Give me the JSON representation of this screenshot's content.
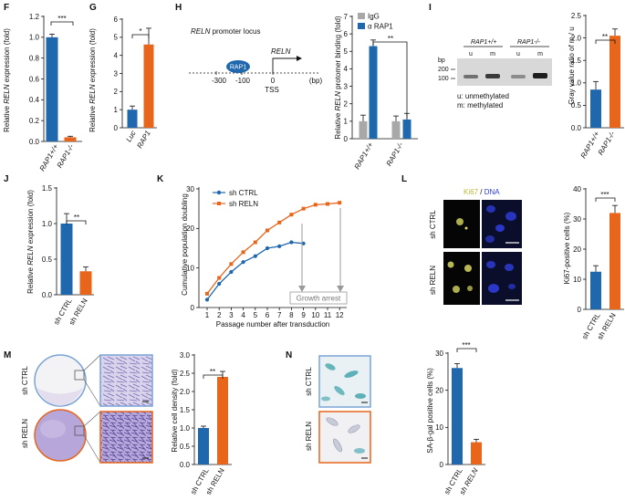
{
  "colors": {
    "blue": "#1f68ad",
    "orange": "#e8651c",
    "gray": "#a8a8a8",
    "ki67": "#d8d860",
    "dna": "#2e3bd6",
    "stain": "#9b8fc7",
    "sabgal": "#3aa0a8"
  },
  "panels": {
    "F": {
      "label": "F",
      "ylabel_pre": "Relative ",
      "ylabel_gene": "RELN",
      "ylabel_post": " expression (fold)",
      "ticks": [
        "0.0",
        "0.2",
        "0.4",
        "0.6",
        "0.8",
        "1.0",
        "1.2"
      ],
      "cats": [
        "RAP1+/+",
        "RAP1-/-"
      ],
      "sig": "***"
    },
    "G": {
      "label": "G",
      "ylabel_pre": "Relative ",
      "ylabel_gene": "RELN",
      "ylabel_post": " expression (fold)",
      "ticks": [
        "0",
        "1",
        "2",
        "3",
        "4",
        "5",
        "6"
      ],
      "cats": [
        "Luc",
        "RAP1"
      ],
      "sig": "*"
    },
    "H": {
      "label": "H",
      "locus_pre": "",
      "locus_gene": "RELN",
      "locus_post": " promoter locus",
      "rap1": "RAP1",
      "gene": "RELN",
      "tss": "TSS",
      "pos": [
        "-300",
        "-100",
        "0",
        "(bp)"
      ],
      "ylabel_pre": "Relative ",
      "ylabel_gene": "RELN",
      "ylabel_post": " protomer binding (fold)",
      "ticks": [
        "0",
        "1",
        "2",
        "3",
        "4",
        "5",
        "6",
        "7"
      ],
      "legend": [
        "IgG",
        "α RAP1"
      ],
      "cats": [
        "RAP1+/+",
        "RAP1-/-"
      ],
      "sig": "**"
    },
    "I": {
      "label": "I",
      "bp": "bp",
      "bp_marks": [
        "200",
        "100"
      ],
      "g1": "RAP1+/+",
      "g2": "RAP1-/-",
      "lanes": [
        "u",
        "m",
        "u",
        "m"
      ],
      "note1": "u: unmethylated",
      "note2": "m: methylated",
      "ylabel": "Gray value ratio of m / u",
      "ticks": [
        "0.0",
        "0.5",
        "1.0",
        "1.5",
        "2.0",
        "2.5"
      ],
      "cats": [
        "RAP1+/+",
        "RAP1-/-"
      ],
      "sig": "**"
    },
    "J": {
      "label": "J",
      "ylabel_pre": "Relative ",
      "ylabel_gene": "RELN",
      "ylabel_post": " expression (fold)",
      "ticks": [
        "0.0",
        "0.5",
        "1.0",
        "1.5"
      ],
      "cats": [
        "sh CTRL",
        "sh RELN"
      ],
      "sig": "**"
    },
    "K": {
      "label": "K",
      "legend": [
        "sh CTRL",
        "sh RELN"
      ],
      "ylabel": "Cumulative population doubling",
      "xlabel": "Passage number after transduction",
      "growth": "Growth arrest",
      "yticks": [
        "0",
        "10",
        "20",
        "30"
      ],
      "xticks": [
        "1",
        "2",
        "3",
        "4",
        "5",
        "6",
        "7",
        "8",
        "9",
        "10",
        "11",
        "12"
      ]
    },
    "L": {
      "label": "L",
      "title_a": "Ki67",
      "title_sep": " / ",
      "title_b": "DNA",
      "rows": [
        "sh CTRL",
        "sh RELN"
      ],
      "ylabel": "Ki67-positive cells (%)",
      "ticks": [
        "0",
        "10",
        "20",
        "30",
        "40"
      ],
      "cats": [
        "sh CTRL",
        "sh RELN"
      ],
      "sig": "***"
    },
    "M": {
      "label": "M",
      "rows": [
        "sh CTRL",
        "sh RELN"
      ],
      "ylabel": "Relative cell density (fold)",
      "ticks": [
        "0.0",
        "0.5",
        "1.0",
        "1.5",
        "2.0",
        "2.5",
        "3.0"
      ],
      "cats": [
        "sh CTRL",
        "sh RELN"
      ],
      "sig": "**"
    },
    "N": {
      "label": "N",
      "rows": [
        "sh CTRL",
        "sh RELN"
      ],
      "ylabel": "SA-β-gal positive cells (%)",
      "ticks": [
        "0",
        "10",
        "20",
        "30"
      ],
      "cats": [
        "sh CTRL",
        "sh RELN"
      ],
      "sig": "***"
    }
  },
  "chart_data": [
    {
      "type": "bar",
      "panel": "F",
      "categories": [
        "RAP1+/+",
        "RAP1-/-"
      ],
      "values": [
        1.0,
        0.04
      ],
      "errors": [
        0.03,
        0.01
      ],
      "ylim": [
        0,
        1.2
      ],
      "ylabel": "Relative RELN expression (fold)"
    },
    {
      "type": "bar",
      "panel": "G",
      "categories": [
        "Luc",
        "RAP1"
      ],
      "values": [
        1.0,
        4.6
      ],
      "errors": [
        0.2,
        0.9
      ],
      "ylim": [
        0,
        6
      ],
      "ylabel": "Relative RELN expression (fold)"
    },
    {
      "type": "bar",
      "panel": "H",
      "categories": [
        "RAP1+/+",
        "RAP1-/-"
      ],
      "series": [
        {
          "name": "IgG",
          "values": [
            1.0,
            1.0
          ],
          "errors": [
            0.35,
            0.3
          ]
        },
        {
          "name": "α RAP1",
          "values": [
            5.3,
            1.1
          ],
          "errors": [
            0.35,
            0.35
          ]
        }
      ],
      "ylim": [
        0,
        7
      ],
      "ylabel": "Relative RELN protomer binding (fold)"
    },
    {
      "type": "bar",
      "panel": "I",
      "categories": [
        "RAP1+/+",
        "RAP1-/-"
      ],
      "values": [
        0.85,
        2.05
      ],
      "errors": [
        0.18,
        0.15
      ],
      "ylim": [
        0,
        2.5
      ],
      "ylabel": "Gray value ratio of m / u"
    },
    {
      "type": "bar",
      "panel": "J",
      "categories": [
        "sh CTRL",
        "sh RELN"
      ],
      "values": [
        1.0,
        0.33
      ],
      "errors": [
        0.14,
        0.06
      ],
      "ylim": [
        0,
        1.5
      ],
      "ylabel": "Relative RELN expression (fold)"
    },
    {
      "type": "line",
      "panel": "K",
      "x": [
        1,
        2,
        3,
        4,
        5,
        6,
        7,
        8,
        9,
        10,
        11,
        12
      ],
      "series": [
        {
          "name": "sh CTRL",
          "values": [
            2.0,
            6.0,
            9.0,
            11.5,
            13.0,
            15.0,
            15.5,
            16.5,
            16.2,
            null,
            null,
            null
          ]
        },
        {
          "name": "sh RELN",
          "values": [
            3.5,
            7.5,
            11.0,
            14.0,
            16.5,
            19.5,
            21.5,
            23.5,
            25.0,
            26.0,
            26.2,
            26.5
          ]
        }
      ],
      "ylim": [
        0,
        30
      ],
      "xlabel": "Passage number after transduction",
      "ylabel": "Cumulative population doubling"
    },
    {
      "type": "bar",
      "panel": "L",
      "categories": [
        "sh CTRL",
        "sh RELN"
      ],
      "values": [
        12.5,
        32.0
      ],
      "errors": [
        2.0,
        2.5
      ],
      "ylim": [
        0,
        40
      ],
      "ylabel": "Ki67-positive cells (%)"
    },
    {
      "type": "bar",
      "panel": "M",
      "categories": [
        "sh CTRL",
        "sh RELN"
      ],
      "values": [
        1.0,
        2.4
      ],
      "errors": [
        0.05,
        0.15
      ],
      "ylim": [
        0,
        3
      ],
      "ylabel": "Relative cell density (fold)"
    },
    {
      "type": "bar",
      "panel": "N",
      "categories": [
        "sh CTRL",
        "sh RELN"
      ],
      "values": [
        26.0,
        6.0
      ],
      "errors": [
        1.2,
        0.8
      ],
      "ylim": [
        0,
        30
      ],
      "ylabel": "SA-β-gal positive cells (%)"
    }
  ]
}
